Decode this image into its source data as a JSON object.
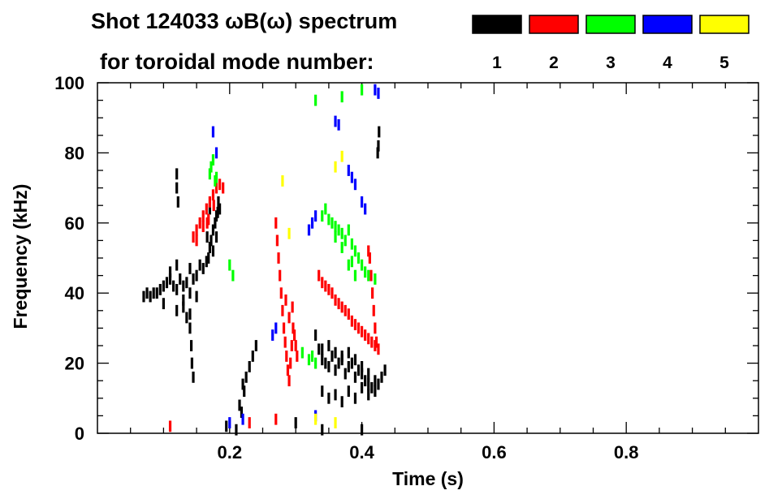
{
  "chart_data": {
    "type": "spectrogram",
    "title_line1": "Shot 124033 ωB(ω) spectrum",
    "title_line2": "for toroidal mode number:",
    "xlabel": "Time (s)",
    "ylabel": "Frequency (kHz)",
    "xlim": [
      0.0,
      1.0
    ],
    "ylim": [
      0,
      100
    ],
    "x_ticks": [
      0.2,
      0.4,
      0.6,
      0.8
    ],
    "x_tick_labels": [
      "0.2",
      "0.4",
      "0.6",
      "0.8"
    ],
    "y_ticks": [
      0,
      20,
      40,
      60,
      80,
      100
    ],
    "y_tick_labels": [
      "0",
      "20",
      "40",
      "60",
      "80",
      "100"
    ],
    "legend": [
      {
        "label": "1",
        "color": "#000000"
      },
      {
        "label": "2",
        "color": "#ff0000"
      },
      {
        "label": "3",
        "color": "#00ff00"
      },
      {
        "label": "4",
        "color": "#0000ff"
      },
      {
        "label": "5",
        "color": "#ffff00"
      }
    ],
    "series": [
      {
        "name": "n=1",
        "color": "#000000",
        "points": [
          [
            0.07,
            39
          ],
          [
            0.075,
            40
          ],
          [
            0.08,
            39
          ],
          [
            0.085,
            40
          ],
          [
            0.09,
            40
          ],
          [
            0.095,
            41
          ],
          [
            0.1,
            42
          ],
          [
            0.105,
            43
          ],
          [
            0.11,
            44
          ],
          [
            0.115,
            42
          ],
          [
            0.12,
            41
          ],
          [
            0.125,
            44
          ],
          [
            0.13,
            42
          ],
          [
            0.135,
            43
          ],
          [
            0.14,
            40
          ],
          [
            0.1,
            37
          ],
          [
            0.11,
            46
          ],
          [
            0.12,
            48
          ],
          [
            0.13,
            38
          ],
          [
            0.14,
            47
          ],
          [
            0.145,
            44
          ],
          [
            0.15,
            45
          ],
          [
            0.155,
            48
          ],
          [
            0.16,
            47
          ],
          [
            0.165,
            49
          ],
          [
            0.13,
            36
          ],
          [
            0.12,
            35
          ],
          [
            0.14,
            34
          ],
          [
            0.15,
            39
          ],
          [
            0.135,
            33
          ],
          [
            0.14,
            30
          ],
          [
            0.142,
            25
          ],
          [
            0.143,
            20
          ],
          [
            0.145,
            16
          ],
          [
            0.12,
            70
          ],
          [
            0.12,
            74
          ],
          [
            0.122,
            66
          ],
          [
            0.18,
            62
          ],
          [
            0.182,
            63
          ],
          [
            0.185,
            64
          ],
          [
            0.175,
            58
          ],
          [
            0.172,
            55
          ],
          [
            0.17,
            53
          ],
          [
            0.168,
            50
          ],
          [
            0.166,
            56
          ],
          [
            0.178,
            60
          ],
          [
            0.183,
            66
          ],
          [
            0.17,
            64
          ],
          [
            0.18,
            56
          ],
          [
            0.175,
            52
          ],
          [
            0.22,
            14
          ],
          [
            0.222,
            12
          ],
          [
            0.225,
            16
          ],
          [
            0.23,
            19
          ],
          [
            0.235,
            22
          ],
          [
            0.24,
            25
          ],
          [
            0.215,
            8
          ],
          [
            0.218,
            6
          ],
          [
            0.33,
            28
          ],
          [
            0.335,
            24
          ],
          [
            0.34,
            21
          ],
          [
            0.345,
            20
          ],
          [
            0.35,
            19
          ],
          [
            0.355,
            22
          ],
          [
            0.36,
            18
          ],
          [
            0.365,
            20
          ],
          [
            0.37,
            21
          ],
          [
            0.375,
            17
          ],
          [
            0.38,
            19
          ],
          [
            0.385,
            20
          ],
          [
            0.39,
            16
          ],
          [
            0.395,
            18
          ],
          [
            0.4,
            17
          ],
          [
            0.405,
            15
          ],
          [
            0.41,
            14
          ],
          [
            0.415,
            13
          ],
          [
            0.42,
            12
          ],
          [
            0.425,
            14
          ],
          [
            0.43,
            16
          ],
          [
            0.435,
            18
          ],
          [
            0.34,
            24
          ],
          [
            0.35,
            25
          ],
          [
            0.36,
            23
          ],
          [
            0.37,
            22
          ],
          [
            0.38,
            23
          ],
          [
            0.39,
            21
          ],
          [
            0.4,
            19
          ],
          [
            0.41,
            17
          ],
          [
            0.34,
            12
          ],
          [
            0.35,
            10
          ],
          [
            0.36,
            11
          ],
          [
            0.37,
            9
          ],
          [
            0.38,
            12
          ],
          [
            0.39,
            10
          ],
          [
            0.4,
            13
          ],
          [
            0.41,
            11
          ],
          [
            0.42,
            15
          ],
          [
            0.425,
            82
          ],
          [
            0.426,
            86
          ],
          [
            0.424,
            80
          ],
          [
            0.195,
            2
          ],
          [
            0.21,
            1
          ],
          [
            0.4,
            1
          ],
          [
            0.34,
            1
          ],
          [
            0.3,
            3
          ]
        ]
      },
      {
        "name": "n=2",
        "color": "#ff0000",
        "points": [
          [
            0.145,
            56
          ],
          [
            0.15,
            58
          ],
          [
            0.155,
            60
          ],
          [
            0.16,
            62
          ],
          [
            0.165,
            64
          ],
          [
            0.17,
            66
          ],
          [
            0.175,
            68
          ],
          [
            0.18,
            70
          ],
          [
            0.185,
            71
          ],
          [
            0.19,
            70
          ],
          [
            0.15,
            55
          ],
          [
            0.16,
            59
          ],
          [
            0.168,
            61
          ],
          [
            0.176,
            65
          ],
          [
            0.166,
            60
          ],
          [
            0.27,
            60
          ],
          [
            0.272,
            55
          ],
          [
            0.274,
            50
          ],
          [
            0.276,
            45
          ],
          [
            0.278,
            40
          ],
          [
            0.28,
            35
          ],
          [
            0.282,
            30
          ],
          [
            0.284,
            26
          ],
          [
            0.286,
            22
          ],
          [
            0.288,
            18
          ],
          [
            0.29,
            15
          ],
          [
            0.292,
            20
          ],
          [
            0.294,
            25
          ],
          [
            0.296,
            30
          ],
          [
            0.298,
            28
          ],
          [
            0.3,
            25
          ],
          [
            0.302,
            22
          ],
          [
            0.285,
            38
          ],
          [
            0.29,
            33
          ],
          [
            0.295,
            36
          ],
          [
            0.335,
            45
          ],
          [
            0.34,
            43
          ],
          [
            0.345,
            42
          ],
          [
            0.35,
            41
          ],
          [
            0.355,
            40
          ],
          [
            0.36,
            38
          ],
          [
            0.365,
            37
          ],
          [
            0.37,
            36
          ],
          [
            0.375,
            35
          ],
          [
            0.38,
            34
          ],
          [
            0.385,
            32
          ],
          [
            0.39,
            31
          ],
          [
            0.395,
            30
          ],
          [
            0.4,
            29
          ],
          [
            0.405,
            28
          ],
          [
            0.41,
            27
          ],
          [
            0.415,
            26
          ],
          [
            0.42,
            25
          ],
          [
            0.425,
            24
          ],
          [
            0.41,
            52
          ],
          [
            0.412,
            50
          ],
          [
            0.414,
            45
          ],
          [
            0.416,
            40
          ],
          [
            0.418,
            35
          ],
          [
            0.42,
            30
          ],
          [
            0.422,
            26
          ],
          [
            0.11,
            2
          ],
          [
            0.23,
            3
          ],
          [
            0.27,
            4
          ]
        ]
      },
      {
        "name": "n=3",
        "color": "#00ff00",
        "points": [
          [
            0.17,
            74
          ],
          [
            0.172,
            76
          ],
          [
            0.175,
            78
          ],
          [
            0.178,
            72
          ],
          [
            0.18,
            73
          ],
          [
            0.2,
            48
          ],
          [
            0.205,
            45
          ],
          [
            0.34,
            62
          ],
          [
            0.345,
            64
          ],
          [
            0.35,
            61
          ],
          [
            0.355,
            60
          ],
          [
            0.36,
            59
          ],
          [
            0.365,
            58
          ],
          [
            0.37,
            57
          ],
          [
            0.375,
            55
          ],
          [
            0.38,
            58
          ],
          [
            0.385,
            54
          ],
          [
            0.39,
            52
          ],
          [
            0.395,
            50
          ],
          [
            0.4,
            48
          ],
          [
            0.405,
            46
          ],
          [
            0.41,
            45
          ],
          [
            0.42,
            44
          ],
          [
            0.36,
            56
          ],
          [
            0.37,
            53
          ],
          [
            0.38,
            48
          ],
          [
            0.385,
            49
          ],
          [
            0.39,
            45
          ],
          [
            0.32,
            21
          ],
          [
            0.325,
            22
          ],
          [
            0.33,
            20
          ],
          [
            0.31,
            23
          ],
          [
            0.33,
            95
          ],
          [
            0.37,
            96
          ],
          [
            0.4,
            98
          ]
        ]
      },
      {
        "name": "n=4",
        "color": "#0000ff",
        "points": [
          [
            0.175,
            86
          ],
          [
            0.18,
            80
          ],
          [
            0.265,
            28
          ],
          [
            0.27,
            30
          ],
          [
            0.32,
            58
          ],
          [
            0.325,
            60
          ],
          [
            0.33,
            62
          ],
          [
            0.38,
            75
          ],
          [
            0.385,
            73
          ],
          [
            0.39,
            71
          ],
          [
            0.4,
            66
          ],
          [
            0.405,
            64
          ],
          [
            0.36,
            89
          ],
          [
            0.365,
            88
          ],
          [
            0.42,
            98
          ],
          [
            0.425,
            97
          ],
          [
            0.2,
            3
          ],
          [
            0.22,
            4
          ],
          [
            0.33,
            5
          ]
        ]
      },
      {
        "name": "n=5",
        "color": "#ffff00",
        "points": [
          [
            0.28,
            72
          ],
          [
            0.29,
            57
          ],
          [
            0.36,
            76
          ],
          [
            0.37,
            79
          ],
          [
            0.36,
            3
          ],
          [
            0.33,
            4
          ]
        ]
      }
    ]
  }
}
